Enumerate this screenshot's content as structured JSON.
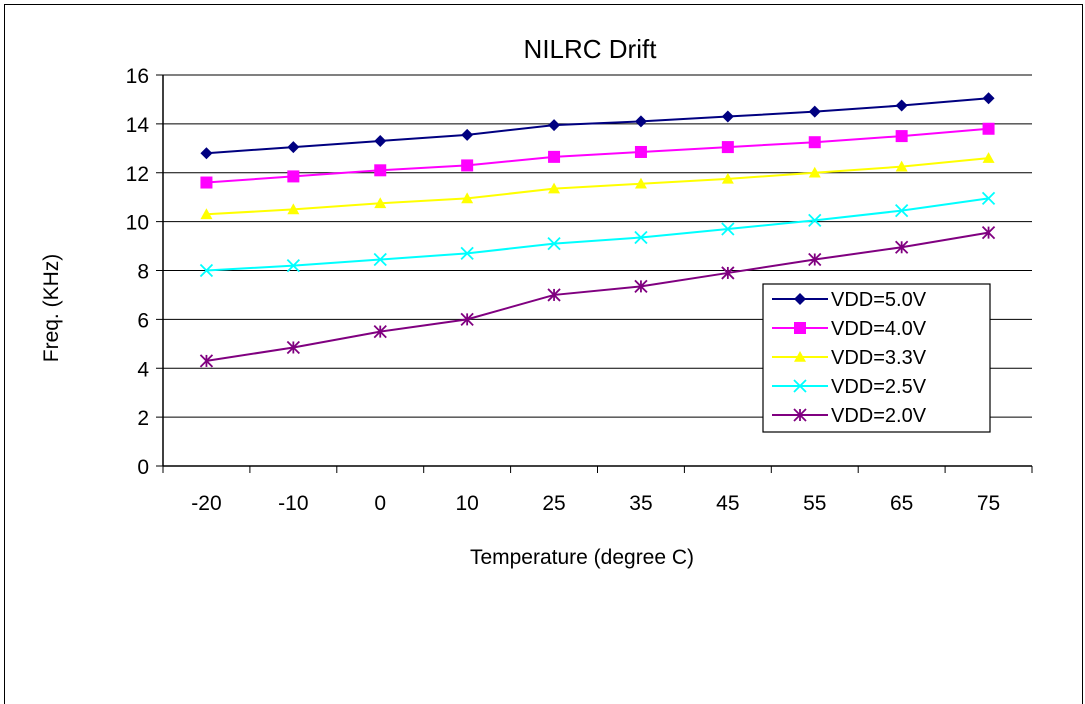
{
  "chart_data": {
    "type": "line",
    "title": "NILRC Drift",
    "xlabel": "Temperature (degree C)",
    "ylabel": "Freq. (KHz)",
    "categories": [
      "-20",
      "-10",
      "0",
      "10",
      "25",
      "35",
      "45",
      "55",
      "65",
      "75"
    ],
    "ylim": [
      0,
      16
    ],
    "yticks": [
      "0",
      "2",
      "4",
      "6",
      "8",
      "10",
      "12",
      "14",
      "16"
    ],
    "grid": "horizontal",
    "legend_position": "bottom-right inside",
    "series": [
      {
        "name": "VDD=5.0V",
        "color": "#000080",
        "marker": "diamond",
        "values": [
          12.8,
          13.05,
          13.3,
          13.55,
          13.95,
          14.1,
          14.3,
          14.5,
          14.75,
          15.05
        ]
      },
      {
        "name": "VDD=4.0V",
        "color": "#ff00ff",
        "marker": "square",
        "values": [
          11.6,
          11.85,
          12.1,
          12.3,
          12.65,
          12.85,
          13.05,
          13.25,
          13.5,
          13.8
        ]
      },
      {
        "name": "VDD=3.3V",
        "color": "#ffff00",
        "marker": "triangle",
        "values": [
          10.3,
          10.5,
          10.75,
          10.95,
          11.35,
          11.55,
          11.75,
          12.0,
          12.25,
          12.6
        ]
      },
      {
        "name": "VDD=2.5V",
        "color": "#00ffff",
        "marker": "x",
        "values": [
          8.0,
          8.2,
          8.45,
          8.7,
          9.1,
          9.35,
          9.7,
          10.05,
          10.45,
          10.95
        ]
      },
      {
        "name": "VDD=2.0V",
        "color": "#800080",
        "marker": "asterisk",
        "values": [
          4.3,
          4.85,
          5.5,
          6.0,
          7.0,
          7.35,
          7.9,
          8.45,
          8.95,
          9.55
        ]
      }
    ]
  }
}
